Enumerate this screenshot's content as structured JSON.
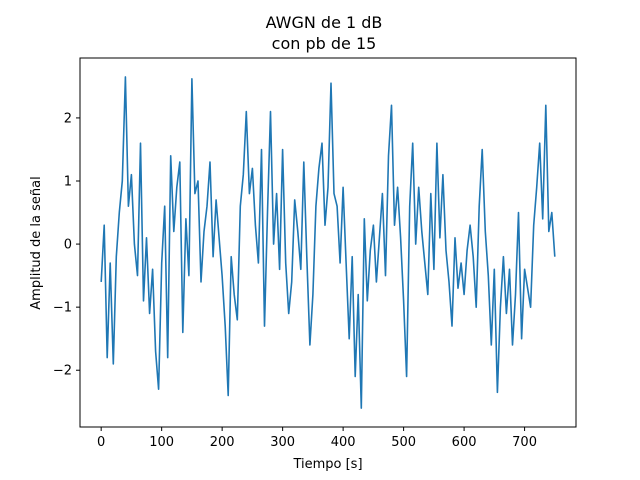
{
  "chart_data": {
    "type": "line",
    "title_line1": "AWGN de 1 dB",
    "title_line2": "con pb de 15",
    "xlabel": "Tiempo [s]",
    "ylabel": "Amplitud de la señal",
    "xlim": [
      -35,
      785
    ],
    "ylim": [
      -2.9,
      2.95
    ],
    "xticks": [
      0,
      100,
      200,
      300,
      400,
      500,
      600,
      700
    ],
    "yticks": [
      -2,
      -1,
      0,
      1,
      2
    ],
    "grid": false,
    "series": [
      {
        "color": "#1f77b4",
        "x": [
          0,
          5,
          10,
          15,
          20,
          25,
          30,
          35,
          40,
          45,
          50,
          55,
          60,
          65,
          70,
          75,
          80,
          85,
          90,
          95,
          100,
          105,
          110,
          115,
          120,
          125,
          130,
          135,
          140,
          145,
          150,
          155,
          160,
          165,
          170,
          175,
          180,
          185,
          190,
          195,
          200,
          205,
          210,
          215,
          220,
          225,
          230,
          235,
          240,
          245,
          250,
          255,
          260,
          265,
          270,
          275,
          280,
          285,
          290,
          295,
          300,
          305,
          310,
          315,
          320,
          325,
          330,
          335,
          340,
          345,
          350,
          355,
          360,
          365,
          370,
          375,
          380,
          385,
          390,
          395,
          400,
          405,
          410,
          415,
          420,
          425,
          430,
          435,
          440,
          445,
          450,
          455,
          460,
          465,
          470,
          475,
          480,
          485,
          490,
          495,
          500,
          505,
          510,
          515,
          520,
          525,
          530,
          535,
          540,
          545,
          550,
          555,
          560,
          565,
          570,
          575,
          580,
          585,
          590,
          595,
          600,
          605,
          610,
          615,
          620,
          625,
          630,
          635,
          640,
          645,
          650,
          655,
          660,
          665,
          670,
          675,
          680,
          685,
          690,
          695,
          700,
          705,
          710,
          715,
          720,
          725,
          730,
          735,
          740,
          745,
          750
        ],
        "y": [
          -0.6,
          0.3,
          -1.8,
          -0.3,
          -1.9,
          -0.2,
          0.5,
          1.0,
          2.65,
          0.6,
          1.1,
          0.0,
          -0.5,
          1.6,
          -0.9,
          0.1,
          -1.1,
          -0.4,
          -1.7,
          -2.3,
          -0.3,
          0.6,
          -1.8,
          1.4,
          0.2,
          0.9,
          1.3,
          -1.4,
          0.4,
          -0.5,
          2.62,
          0.8,
          1.0,
          -0.6,
          0.2,
          0.6,
          1.3,
          -0.2,
          0.7,
          0.1,
          -0.5,
          -1.3,
          -2.4,
          -0.2,
          -0.8,
          -1.2,
          0.6,
          1.1,
          2.1,
          0.8,
          1.2,
          0.3,
          -0.3,
          1.5,
          -1.3,
          0.5,
          2.1,
          0.0,
          0.8,
          -0.4,
          1.5,
          -0.3,
          -1.1,
          -0.6,
          0.7,
          0.2,
          -0.4,
          1.3,
          -0.2,
          -1.6,
          -0.8,
          0.6,
          1.2,
          1.6,
          0.3,
          0.9,
          2.55,
          0.8,
          0.6,
          -0.3,
          0.9,
          -0.3,
          -1.5,
          -0.2,
          -2.1,
          -0.8,
          -2.6,
          0.4,
          -0.9,
          -0.1,
          0.3,
          -0.6,
          0.1,
          0.8,
          -0.5,
          1.4,
          2.2,
          0.3,
          0.9,
          0.1,
          -0.9,
          -2.1,
          0.6,
          1.6,
          0.0,
          0.9,
          0.2,
          -0.3,
          -0.8,
          0.8,
          -0.4,
          1.6,
          0.1,
          1.1,
          -0.1,
          -0.6,
          -1.3,
          0.1,
          -0.7,
          -0.3,
          -0.8,
          -0.1,
          0.3,
          -0.2,
          -1.0,
          0.6,
          1.5,
          0.2,
          -0.5,
          -1.6,
          -0.4,
          -2.35,
          -1.0,
          -0.2,
          -1.1,
          -0.4,
          -1.6,
          -0.8,
          0.5,
          -1.5,
          -0.4,
          -0.7,
          -1.0,
          0.3,
          0.9,
          1.6,
          0.4,
          2.2,
          0.2,
          0.5,
          -0.2
        ]
      }
    ]
  }
}
